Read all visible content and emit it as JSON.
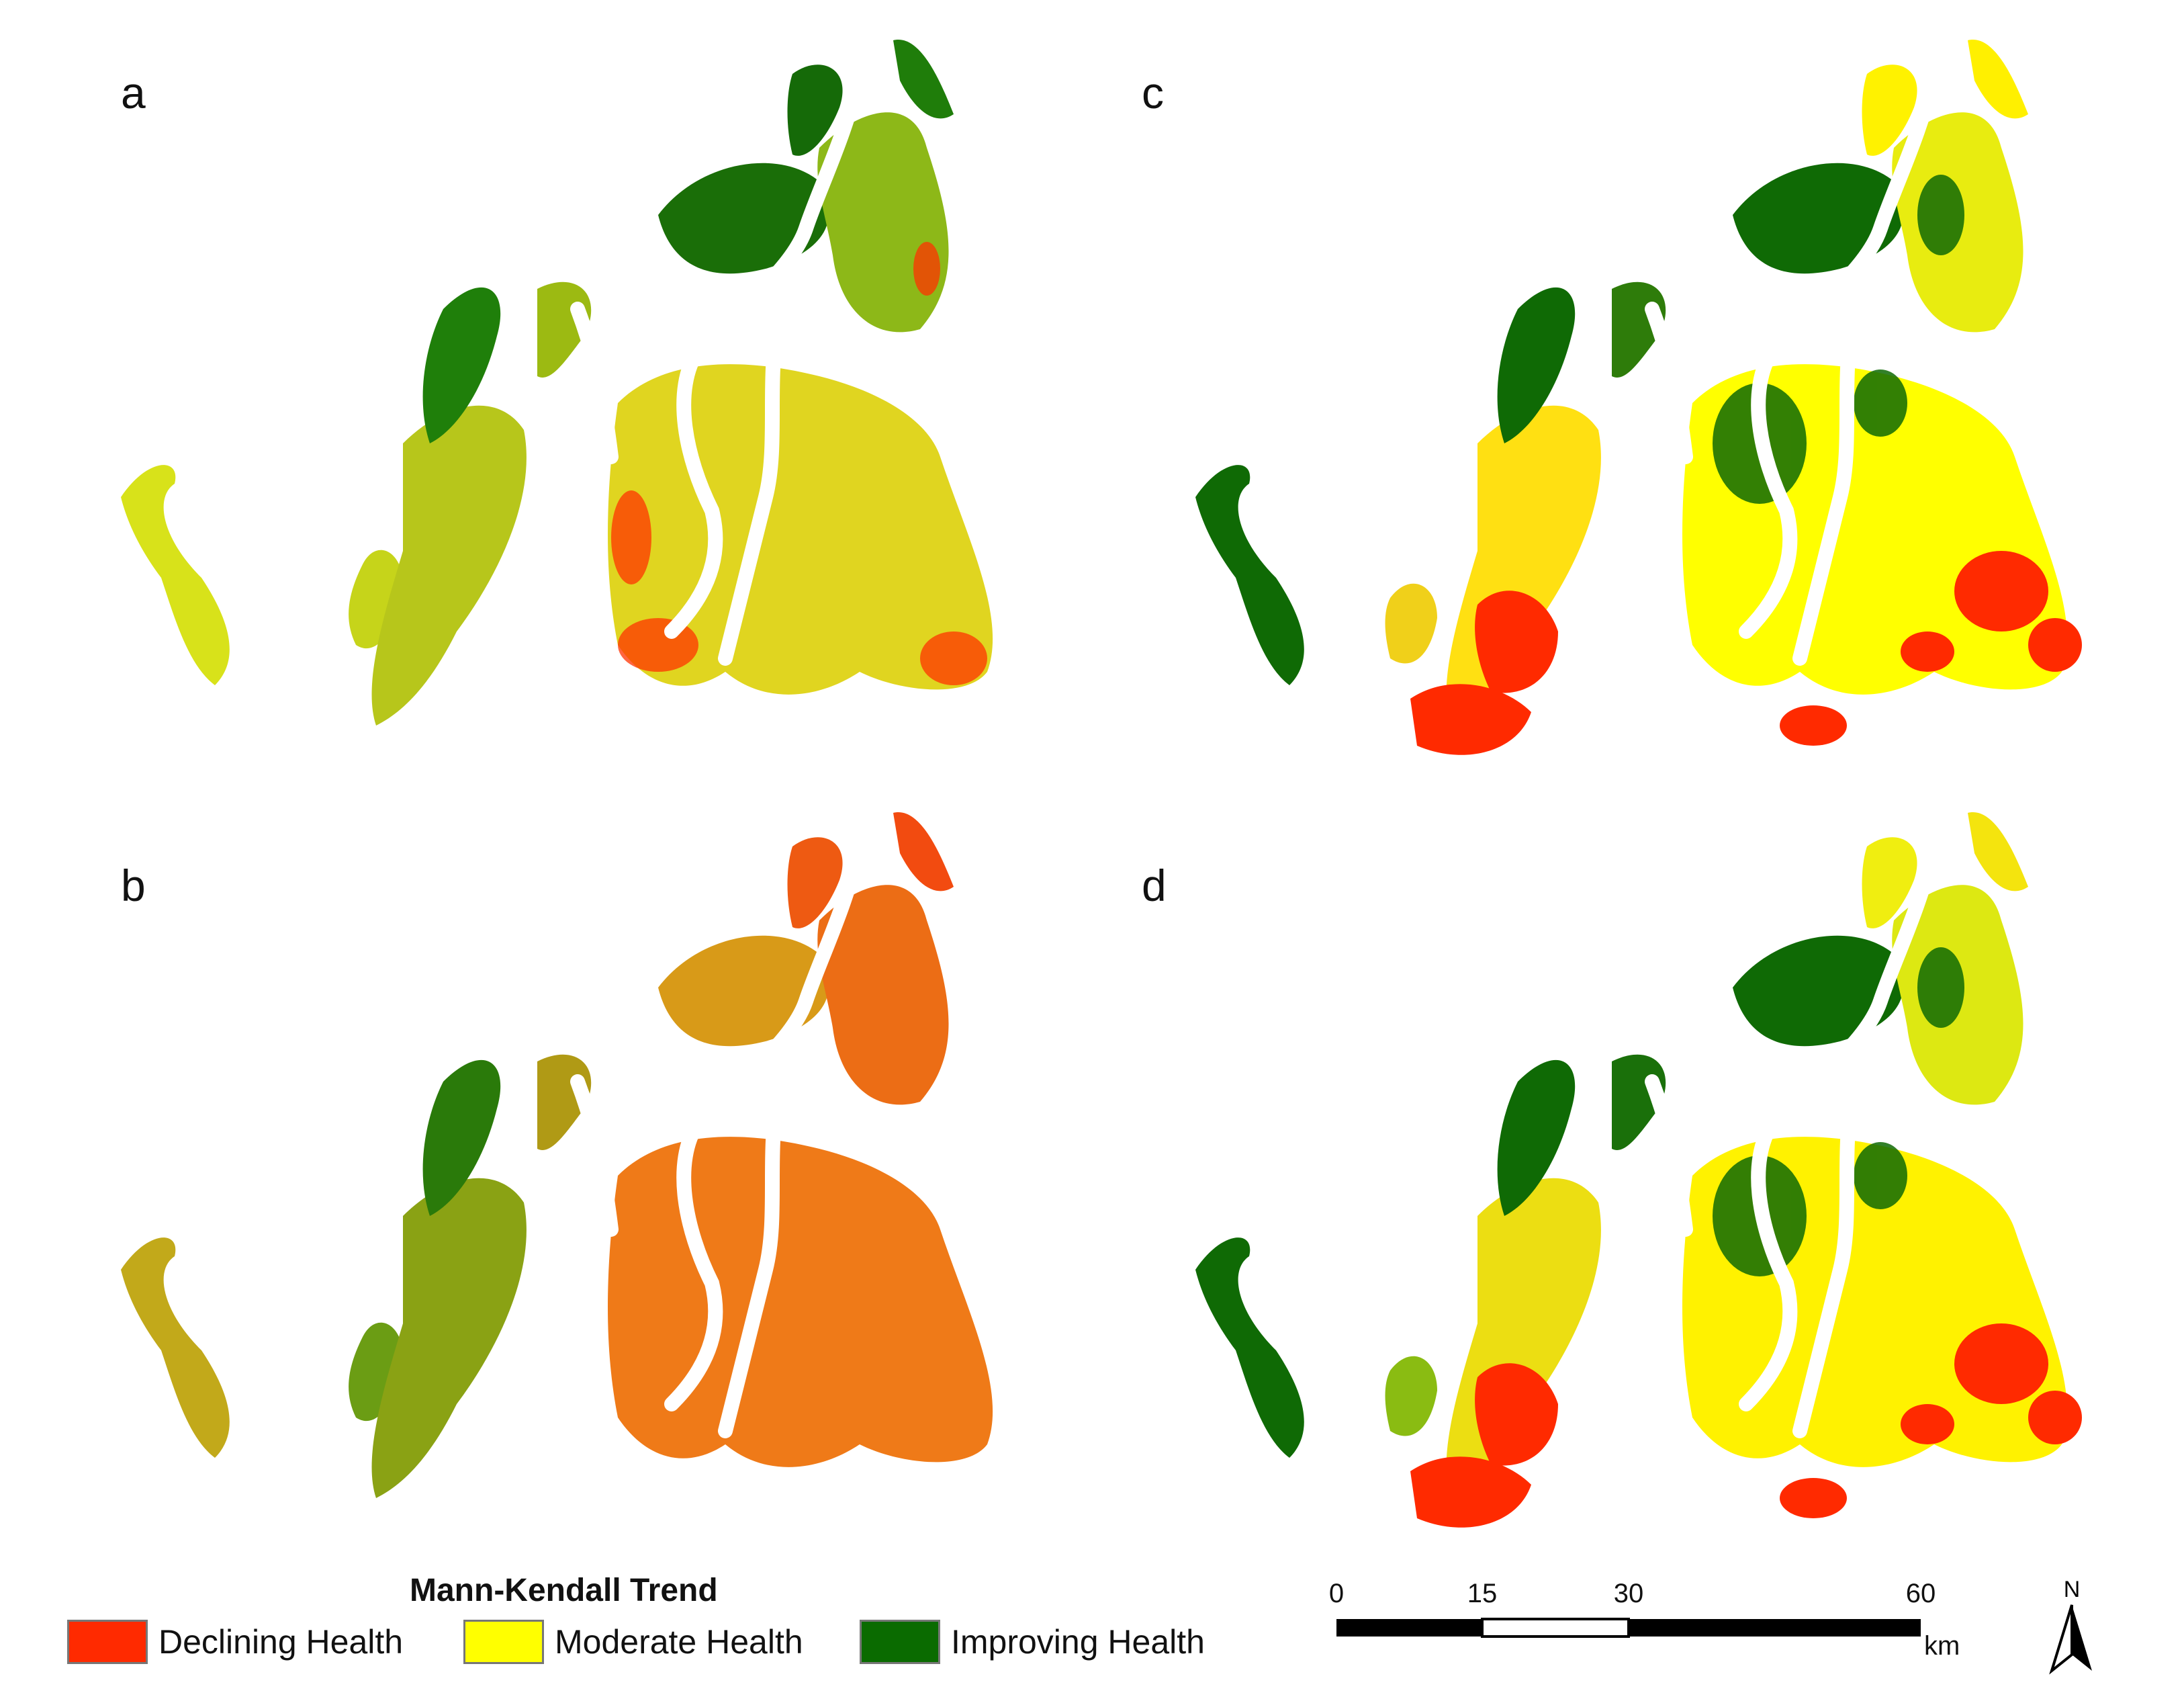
{
  "panels": [
    {
      "letter": "a",
      "dominant": "mixed-green-yellow"
    },
    {
      "letter": "b",
      "dominant": "mixed-red-yellow"
    },
    {
      "letter": "c",
      "dominant": "yellow-green-red"
    },
    {
      "letter": "d",
      "dominant": "yellow-green-red"
    }
  ],
  "legend": {
    "title": "Mann-Kendall Trend",
    "items": [
      {
        "label": "Declining Health",
        "color": "#ff2a00"
      },
      {
        "label": "Moderate Health",
        "color": "#ffff00"
      },
      {
        "label": "Improving Health",
        "color": "#0a6b00"
      }
    ]
  },
  "scale_bar": {
    "ticks": [
      "0",
      "15",
      "30",
      "60"
    ],
    "unit": "km"
  },
  "north_arrow": {
    "label": "N"
  }
}
